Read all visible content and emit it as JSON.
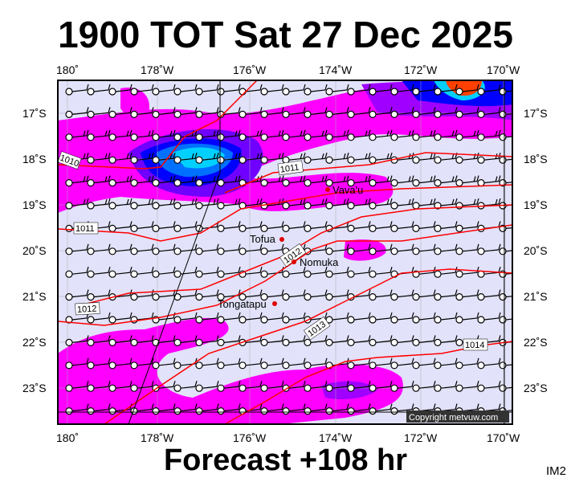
{
  "title": "1900 TOT Sat 27 Dec 2025",
  "footer": "Forecast +108 hr",
  "image_code": "IM2",
  "copyright": "Copyright metvuw.com",
  "lon_labels": [
    "180˚",
    "178˚W",
    "176˚W",
    "174˚W",
    "172˚W",
    "170˚W"
  ],
  "lat_labels": [
    "17˚S",
    "18˚S",
    "19˚S",
    "20˚S",
    "21˚S",
    "22˚S",
    "23˚S"
  ],
  "places": [
    {
      "name": "Vava'u"
    },
    {
      "name": "Tofua"
    },
    {
      "name": "Nomuka"
    },
    {
      "name": "Tongatapu"
    }
  ],
  "isobar_labels": [
    "1010",
    "1011",
    "1011",
    "1012",
    "1012",
    "1013",
    "1014"
  ],
  "colors": {
    "background": "#e2e2fa",
    "magenta": "#ff00ff",
    "purple": "#a000ff",
    "violet": "#7000ff",
    "blue": "#0000ff",
    "blue2": "#0070ff",
    "cyan": "#00d0ff",
    "isobar": "#ff0000"
  }
}
